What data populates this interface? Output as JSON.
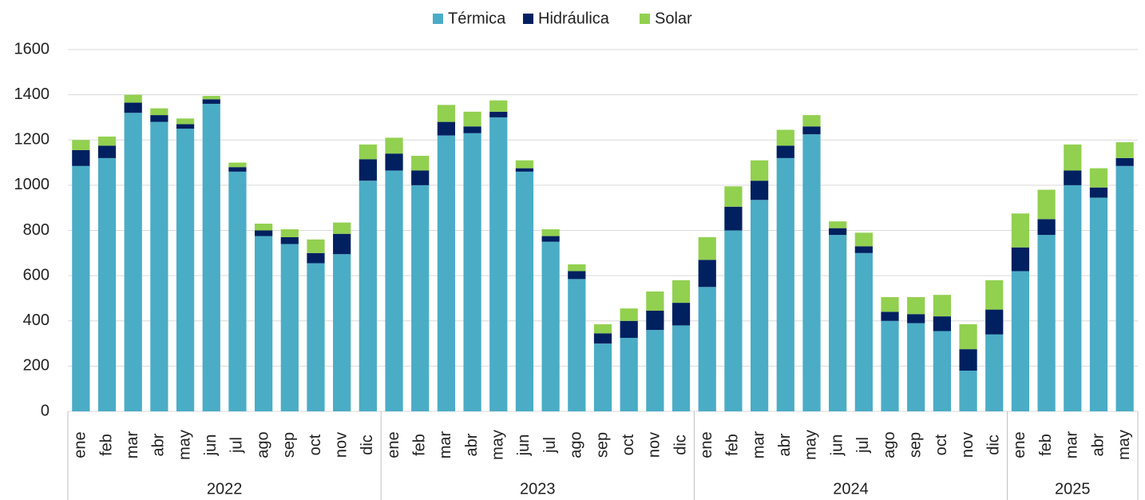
{
  "chart_data": {
    "type": "stacked_bar",
    "groups": [
      {
        "name": "2022",
        "categories": [
          "ene",
          "feb",
          "mar",
          "abr",
          "may",
          "jun",
          "jul",
          "ago",
          "sep",
          "oct",
          "nov",
          "dic"
        ]
      },
      {
        "name": "2023",
        "categories": [
          "ene",
          "feb",
          "mar",
          "abr",
          "may",
          "jun",
          "jul",
          "ago",
          "sep",
          "oct",
          "nov",
          "dic"
        ]
      },
      {
        "name": "2024",
        "categories": [
          "ene",
          "feb",
          "mar",
          "abr",
          "may",
          "jun",
          "jul",
          "ago",
          "sep",
          "oct",
          "nov",
          "dic"
        ]
      },
      {
        "name": "2025",
        "categories": [
          "ene",
          "feb",
          "mar",
          "abr",
          "may"
        ]
      }
    ],
    "series": [
      {
        "name": "Térmica",
        "color": "#4bacc6",
        "values": [
          1085,
          1120,
          1320,
          1280,
          1250,
          1360,
          1060,
          775,
          740,
          655,
          695,
          1020,
          1065,
          1000,
          1220,
          1230,
          1300,
          1060,
          750,
          585,
          300,
          325,
          360,
          380,
          550,
          800,
          935,
          1120,
          1225,
          780,
          700,
          400,
          390,
          355,
          180,
          340,
          620,
          780,
          1000,
          945,
          1085
        ]
      },
      {
        "name": "Hidráulica",
        "color": "#002060",
        "values": [
          70,
          55,
          45,
          30,
          20,
          20,
          20,
          25,
          30,
          45,
          90,
          95,
          75,
          65,
          60,
          30,
          25,
          15,
          25,
          35,
          45,
          75,
          85,
          100,
          120,
          105,
          85,
          55,
          35,
          30,
          30,
          40,
          40,
          65,
          95,
          110,
          105,
          70,
          65,
          45,
          35
        ]
      },
      {
        "name": "Solar",
        "color": "#92d050",
        "values": [
          45,
          40,
          35,
          30,
          25,
          15,
          20,
          30,
          35,
          60,
          50,
          65,
          70,
          65,
          75,
          65,
          50,
          35,
          30,
          30,
          40,
          55,
          85,
          100,
          100,
          90,
          90,
          70,
          50,
          30,
          60,
          65,
          75,
          95,
          110,
          130,
          150,
          130,
          115,
          85,
          70
        ]
      }
    ],
    "ylim": [
      0,
      1600
    ],
    "yticks": [
      0,
      200,
      400,
      600,
      800,
      1000,
      1200,
      1400,
      1600
    ],
    "grid": true,
    "legend": "top"
  }
}
